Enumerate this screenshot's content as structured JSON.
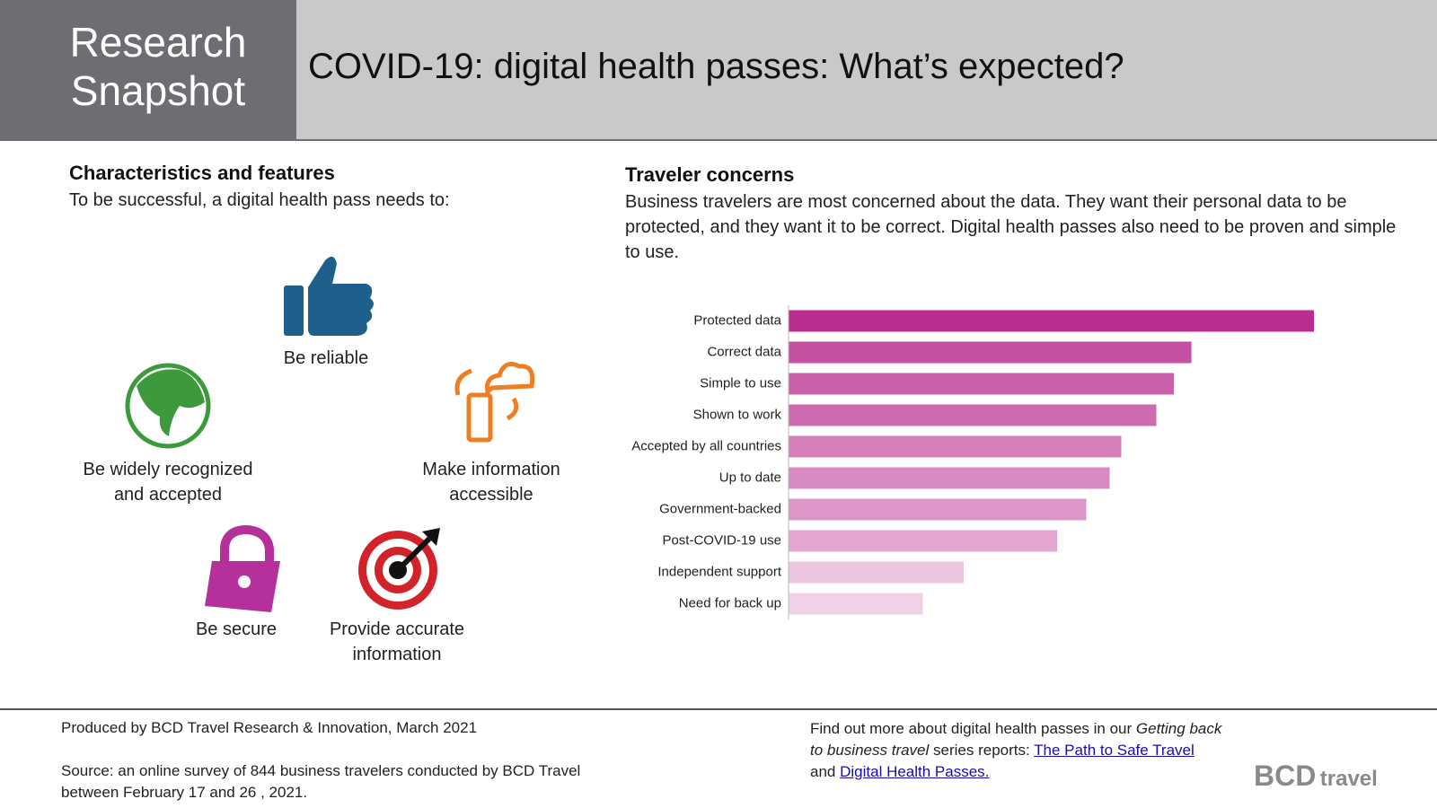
{
  "header": {
    "tag": "Research Snapshot",
    "title": "COVID-19: digital health passes: What’s expected?"
  },
  "left": {
    "heading": "Characteristics and features",
    "subheading": "To be successful, a digital health pass needs to:",
    "items": [
      "Be reliable",
      "Be widely recognized and accepted",
      "Make information accessible",
      "Be secure",
      "Provide accurate information"
    ]
  },
  "right": {
    "heading": "Traveler concerns",
    "text": "Business travelers are most concerned about the data. They want their personal data to be protected, and they want it to be correct. Digital health passes also need to be proven and simple to use."
  },
  "chart_data": {
    "type": "bar",
    "orientation": "horizontal",
    "categories": [
      "Protected data",
      "Correct data",
      "Simple to use",
      "Shown to work",
      "Accepted by all countries",
      "Up to date",
      "Government-backed",
      "Post-COVID-19 use",
      "Independent support",
      "Need for back up"
    ],
    "values": [
      90,
      69,
      66,
      63,
      57,
      55,
      51,
      46,
      30,
      23
    ],
    "colors": [
      "#b82d8f",
      "#c44fa3",
      "#c960aa",
      "#ce6bb0",
      "#d57eba",
      "#d98ac0",
      "#dd97c6",
      "#e3a7cf",
      "#ecc4e0",
      "#f0d1e6"
    ],
    "xlim": [
      0,
      100
    ]
  },
  "footer": {
    "produced": "Produced by BCD Travel Research & Innovation, March 2021",
    "source": "Source: an online survey of 844 business travelers conducted by BCD Travel between February 17 and 26 , 2021.",
    "more_intro": "Find out more about digital health passes in our",
    "more_italic": "Getting back to business travel",
    "more_mid": "series reports:",
    "link1": "The Path to Safe Travel",
    "more_and": "and",
    "link2": "Digital Health Passes.",
    "logo_brand": "BCD",
    "logo_word": "travel"
  }
}
